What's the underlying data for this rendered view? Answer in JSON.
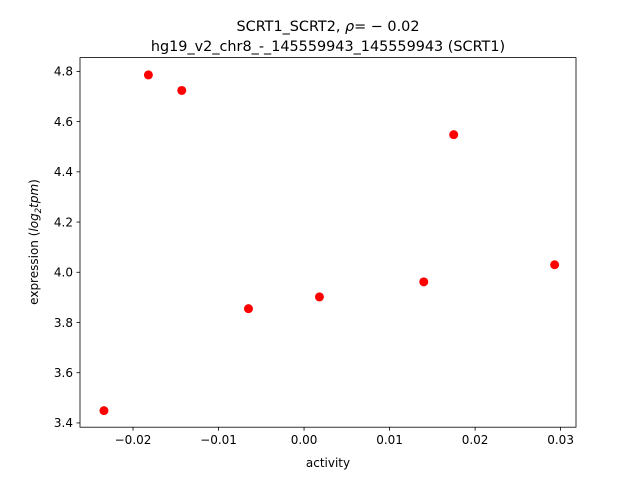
{
  "chart_data": {
    "type": "scatter",
    "title_line1": "SCRT1_SCRT2, ",
    "title_rho_symbol": "ρ",
    "title_rho_value": "= − 0.02",
    "title_line2": "hg19_v2_chr8_-_145559943_145559943 (SCRT1)",
    "xlabel": "activity",
    "ylabel_prefix": "expression (",
    "ylabel_log": "log",
    "ylabel_sub": "2",
    "ylabel_tpm": "tpm",
    "ylabel_suffix": ")",
    "xlim": [
      -0.0262,
      0.0318
    ],
    "ylim": [
      3.383,
      4.855
    ],
    "x_ticks": [
      -0.02,
      -0.01,
      0.0,
      0.01,
      0.02,
      0.03
    ],
    "x_tick_labels": [
      "−0.02",
      "−0.01",
      "0.00",
      "0.01",
      "0.02",
      "0.03"
    ],
    "y_ticks": [
      3.4,
      3.6,
      3.8,
      4.0,
      4.2,
      4.4,
      4.6,
      4.8
    ],
    "y_tick_labels": [
      "3.4",
      "3.6",
      "3.8",
      "4.0",
      "4.2",
      "4.4",
      "4.6",
      "4.8"
    ],
    "grid": false,
    "marker_color": "#ff0000",
    "points": [
      {
        "x": -0.0234,
        "y": 3.449
      },
      {
        "x": -0.0182,
        "y": 4.786
      },
      {
        "x": -0.0143,
        "y": 4.724
      },
      {
        "x": -0.0065,
        "y": 3.855
      },
      {
        "x": 0.0018,
        "y": 3.902
      },
      {
        "x": 0.014,
        "y": 3.962
      },
      {
        "x": 0.0175,
        "y": 4.548
      },
      {
        "x": 0.0293,
        "y": 4.03
      }
    ]
  }
}
